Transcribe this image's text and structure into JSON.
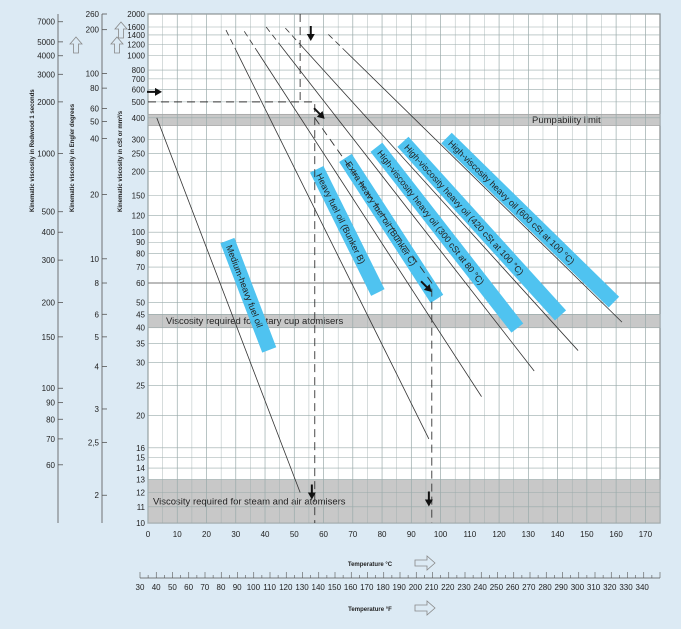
{
  "chart_data": {
    "type": "line",
    "xlabel": "Temperature °C",
    "xlabel2": "Temperature °F",
    "ylabel_cst": "Kinematic viscosity in cSt or mm²/s",
    "ylabel_engler": "Kinematic viscosity in Engler degrees",
    "ylabel_redwood": "Kinematic viscosity in Redwood 1 seconds",
    "x_ticks_c": [
      0,
      10,
      20,
      30,
      40,
      50,
      60,
      70,
      80,
      90,
      100,
      110,
      120,
      130,
      140,
      150,
      160,
      170
    ],
    "xlim": [
      0,
      175
    ],
    "ylim": [
      10,
      2000
    ],
    "yscale": "log-log (viscosity chart)",
    "y_ticks_cst": [
      2000,
      1600,
      1400,
      1200,
      1000,
      800,
      700,
      600,
      500,
      400,
      300,
      250,
      200,
      150,
      120,
      100,
      90,
      80,
      70,
      60,
      50,
      45,
      40,
      35,
      30,
      25,
      20,
      16,
      15,
      14,
      13,
      12,
      11,
      10
    ],
    "engler_ticks": [
      {
        "label": "260",
        "cst": 2000
      },
      {
        "label": "200",
        "cst": 1530
      },
      {
        "label": "100",
        "cst": 760
      },
      {
        "label": "80",
        "cst": 610
      },
      {
        "label": "60",
        "cst": 455
      },
      {
        "label": "50",
        "cst": 380
      },
      {
        "label": "40",
        "cst": 303
      },
      {
        "label": "20",
        "cst": 152
      },
      {
        "label": "10",
        "cst": 76
      },
      {
        "label": "8",
        "cst": 60
      },
      {
        "label": "6",
        "cst": 45
      },
      {
        "label": "5",
        "cst": 37
      },
      {
        "label": "4",
        "cst": 29
      },
      {
        "label": "3",
        "cst": 21
      },
      {
        "label": "2,5",
        "cst": 16.6
      },
      {
        "label": "2",
        "cst": 11.8
      }
    ],
    "redwood_ticks": [
      {
        "label": "7000",
        "cst": 1750
      },
      {
        "label": "5000",
        "cst": 1250
      },
      {
        "label": "4000",
        "cst": 1000
      },
      {
        "label": "3000",
        "cst": 750
      },
      {
        "label": "2000",
        "cst": 500
      },
      {
        "label": "1000",
        "cst": 250
      },
      {
        "label": "500",
        "cst": 125
      },
      {
        "label": "400",
        "cst": 100
      },
      {
        "label": "300",
        "cst": 75
      },
      {
        "label": "200",
        "cst": 50
      },
      {
        "label": "150",
        "cst": 37
      },
      {
        "label": "100",
        "cst": 24.5
      },
      {
        "label": "90",
        "cst": 22
      },
      {
        "label": "80",
        "cst": 19.5
      },
      {
        "label": "70",
        "cst": 17
      },
      {
        "label": "60",
        "cst": 14.3
      }
    ],
    "f_ticks": [
      "30",
      "40",
      "50",
      "60",
      "70",
      "80",
      "90",
      "100",
      "110",
      "120",
      "130",
      "140",
      "150",
      "160",
      "170",
      "180",
      "190",
      "200",
      "210",
      "220",
      "230",
      "240",
      "250",
      "260",
      "270",
      "280",
      "290",
      "300",
      "310",
      "320",
      "330",
      "340"
    ],
    "bands": [
      {
        "label": "Pumpability limit",
        "low": 360,
        "high": 420
      },
      {
        "label": "Viscosity required for rotary cup atomisers",
        "low": 40,
        "high": 45
      },
      {
        "label": "Viscosity required for steam and air atomisers",
        "low": 10,
        "high": 13
      }
    ],
    "series": [
      {
        "name": "Medium-heavy fuel oil",
        "points": [
          [
            3,
            400
          ],
          [
            52,
            12
          ]
        ]
      },
      {
        "name": "Heavy fuel oil (Bunker B)",
        "points": [
          [
            30,
            1100
          ],
          [
            96,
            17
          ]
        ]
      },
      {
        "name": "Extra heavy fuel oil (Bunker C)",
        "points": [
          [
            37,
            1100
          ],
          [
            114,
            23
          ]
        ]
      },
      {
        "name": "High-viscosity heavy oil (300 cSt at 80 °C)",
        "points": [
          [
            45,
            1200
          ],
          [
            132,
            28
          ]
        ]
      },
      {
        "name": "High-viscosity heavy oil (420 cSt at 100 °C)",
        "points": [
          [
            52,
            1200
          ],
          [
            147,
            33
          ]
        ]
      },
      {
        "name": "High-viscosity heavy oil (600 cSt at 100 °C)",
        "points": [
          [
            67,
            1100
          ],
          [
            162,
            42
          ]
        ]
      }
    ],
    "guide_example": [
      [
        0,
        500
      ],
      [
        57,
        500
      ],
      [
        57,
        10
      ]
    ],
    "guide_example_2": [
      [
        57,
        400
      ],
      [
        97,
        60
      ],
      [
        97,
        10
      ]
    ]
  }
}
